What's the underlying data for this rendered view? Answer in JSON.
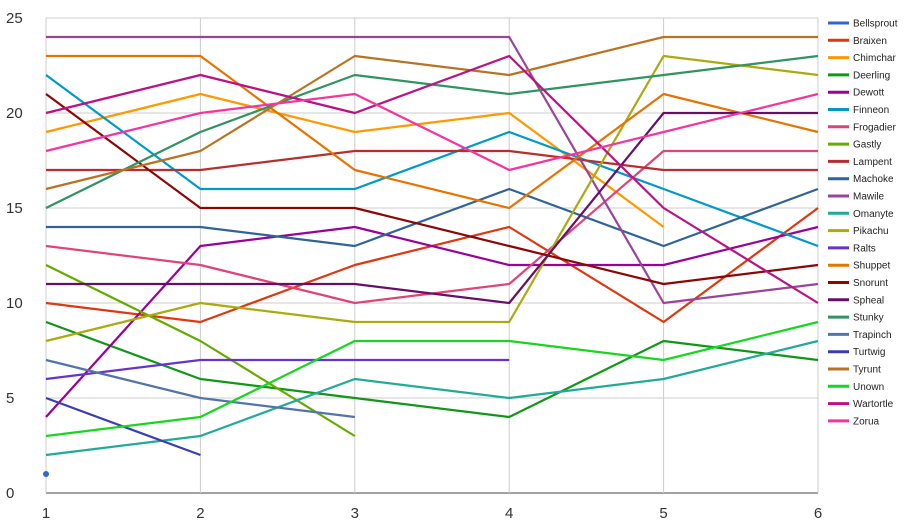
{
  "chart_data": {
    "type": "line",
    "title": "",
    "xlabel": "",
    "ylabel": "",
    "x": [
      1,
      2,
      3,
      4,
      5,
      6
    ],
    "xlim": [
      1,
      6
    ],
    "ylim": [
      0,
      25
    ],
    "yticks": [
      0,
      5,
      10,
      15,
      20,
      25
    ],
    "grid": true,
    "legend": "right",
    "series": [
      {
        "name": "Bellsprout",
        "color": "#3366cc",
        "values": [
          1,
          null,
          null,
          null,
          null,
          null
        ]
      },
      {
        "name": "Braixen",
        "color": "#dc3912",
        "values": [
          10,
          9,
          12,
          14,
          9,
          15
        ]
      },
      {
        "name": "Chimchar",
        "color": "#ff9900",
        "values": [
          19,
          21,
          19,
          20,
          14,
          null
        ]
      },
      {
        "name": "Deerling",
        "color": "#109618",
        "values": [
          9,
          6,
          5,
          4,
          8,
          7
        ]
      },
      {
        "name": "Dewott",
        "color": "#990099",
        "values": [
          4,
          13,
          14,
          12,
          12,
          14
        ]
      },
      {
        "name": "Finneon",
        "color": "#0099c6",
        "values": [
          22,
          16,
          16,
          19,
          16,
          13
        ]
      },
      {
        "name": "Frogadier",
        "color": "#dd4477",
        "values": [
          13,
          12,
          10,
          11,
          18,
          18
        ]
      },
      {
        "name": "Gastly",
        "color": "#66aa00",
        "values": [
          12,
          8,
          3,
          null,
          null,
          null
        ]
      },
      {
        "name": "Lampent",
        "color": "#b82e2e",
        "values": [
          17,
          17,
          18,
          18,
          17,
          17
        ]
      },
      {
        "name": "Machoke",
        "color": "#316395",
        "values": [
          14,
          14,
          13,
          16,
          13,
          16
        ]
      },
      {
        "name": "Mawile",
        "color": "#994499",
        "values": [
          24,
          24,
          24,
          24,
          10,
          11
        ]
      },
      {
        "name": "Omanyte",
        "color": "#22aa99",
        "values": [
          2,
          3,
          6,
          5,
          6,
          8
        ]
      },
      {
        "name": "Pikachu",
        "color": "#aaaa11",
        "values": [
          8,
          10,
          9,
          9,
          23,
          22
        ]
      },
      {
        "name": "Ralts",
        "color": "#6633cc",
        "values": [
          6,
          7,
          7,
          7,
          null,
          null
        ]
      },
      {
        "name": "Shuppet",
        "color": "#e67300",
        "values": [
          23,
          23,
          17,
          15,
          21,
          19
        ]
      },
      {
        "name": "Snorunt",
        "color": "#8b0707",
        "values": [
          21,
          15,
          15,
          13,
          11,
          12
        ]
      },
      {
        "name": "Spheal",
        "color": "#651067",
        "values": [
          11,
          11,
          11,
          10,
          20,
          20
        ]
      },
      {
        "name": "Stunky",
        "color": "#329262",
        "values": [
          15,
          19,
          22,
          21,
          22,
          23
        ]
      },
      {
        "name": "Trapinch",
        "color": "#5574a6",
        "values": [
          7,
          5,
          4,
          null,
          null,
          null
        ]
      },
      {
        "name": "Turtwig",
        "color": "#3b3eac",
        "values": [
          5,
          2,
          null,
          null,
          null,
          null
        ]
      },
      {
        "name": "Tyrunt",
        "color": "#b77322",
        "values": [
          16,
          18,
          23,
          22,
          24,
          24
        ]
      },
      {
        "name": "Unown",
        "color": "#16d620",
        "values": [
          3,
          4,
          8,
          8,
          7,
          9
        ]
      },
      {
        "name": "Wartortle",
        "color": "#b91383",
        "values": [
          20,
          22,
          20,
          23,
          15,
          10
        ]
      },
      {
        "name": "Zorua",
        "color": "#f4359e",
        "values": [
          18,
          20,
          21,
          17,
          19,
          21
        ]
      }
    ]
  }
}
